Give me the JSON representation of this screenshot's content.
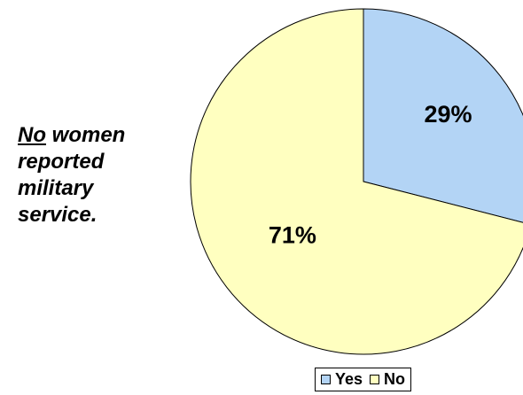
{
  "side_note": {
    "emphasis": "No",
    "rest": " women reported military service."
  },
  "chart_data": {
    "type": "pie",
    "title": "",
    "slices": [
      {
        "label": "Yes",
        "value": 29,
        "display": "29%",
        "color": "#b3d4f5"
      },
      {
        "label": "No",
        "value": 71,
        "display": "71%",
        "color": "#ffffc0"
      }
    ],
    "legend_position": "bottom"
  },
  "legend": {
    "items": [
      {
        "label": "Yes",
        "color": "#b3d4f5"
      },
      {
        "label": "No",
        "color": "#ffffc0"
      }
    ]
  }
}
